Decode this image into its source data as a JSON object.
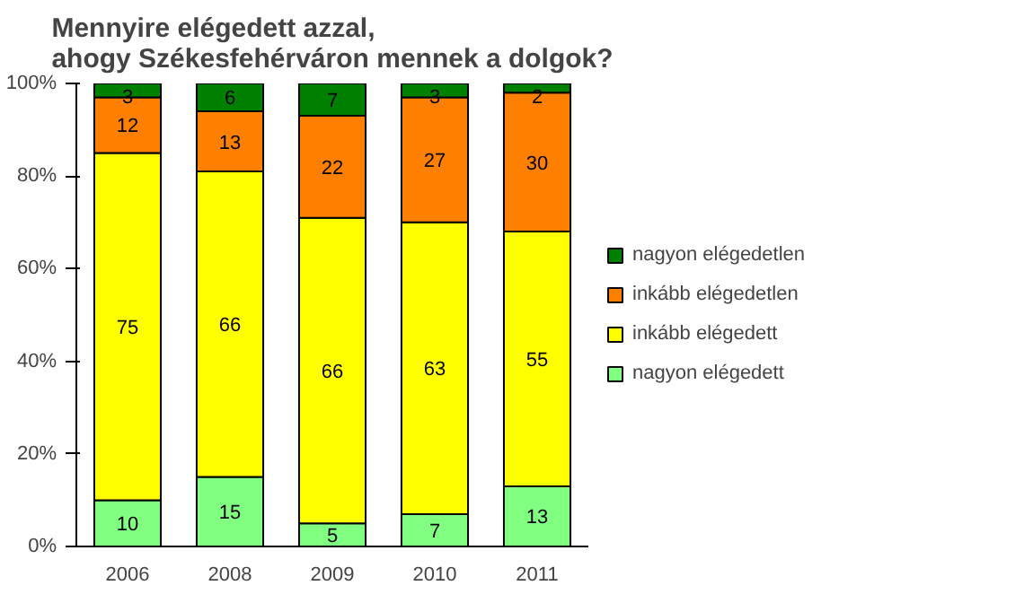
{
  "chart_data": {
    "type": "bar",
    "stacked": true,
    "title": "Mennyire elégedett azzal,\nahogy Székesfehérváron mennek a dolgok?",
    "categories": [
      "2006",
      "2008",
      "2009",
      "2010",
      "2011"
    ],
    "series": [
      {
        "name": "nagyon elégedett",
        "color": "#80ff80",
        "values": [
          10,
          15,
          5,
          7,
          13
        ]
      },
      {
        "name": "inkább elégedett",
        "color": "#ffff00",
        "values": [
          75,
          66,
          66,
          63,
          55
        ]
      },
      {
        "name": "inkább elégedetlen",
        "color": "#ff8000",
        "values": [
          12,
          13,
          22,
          27,
          30
        ]
      },
      {
        "name": "nagyon elégedetlen",
        "color": "#008000",
        "values": [
          3,
          6,
          7,
          3,
          2
        ]
      }
    ],
    "ylim": [
      0,
      100
    ],
    "yticks": [
      {
        "value": 0,
        "label": "0%"
      },
      {
        "value": 20,
        "label": "20%"
      },
      {
        "value": 40,
        "label": "40%"
      },
      {
        "value": 60,
        "label": "60%"
      },
      {
        "value": 80,
        "label": "80%"
      },
      {
        "value": 100,
        "label": "100%"
      }
    ],
    "data_labels": true,
    "grid": false,
    "legend": "right"
  }
}
